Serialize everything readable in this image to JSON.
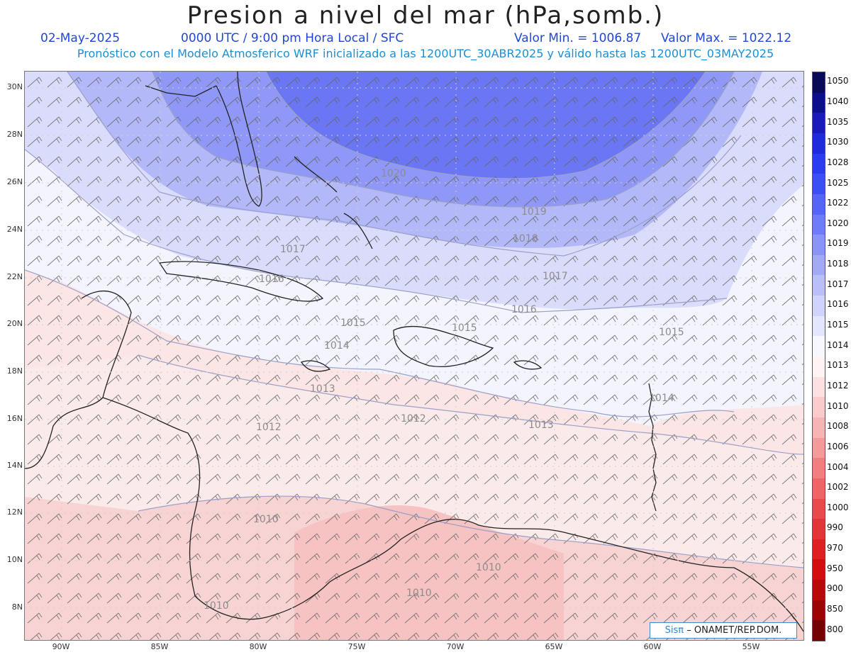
{
  "title": "Presion a nivel del mar (hPa,somb.)",
  "date": "02-May-2025",
  "time_label": "0000 UTC / 9:00 pm Hora Local / SFC",
  "min_label": "Valor Min. = 1006.87",
  "max_label": "Valor Max. = 1022.12",
  "subtitle": "Pronóstico con el Modelo Atmosferico WRF inicializado a las 1200UTC_30ABR2025 y válido hasta las  1200UTC_03MAY2025",
  "brand_prefix": "Sisπ",
  "brand_suffix": "– ONAMET/REP.DOM.",
  "lon_labels": [
    "90W",
    "85W",
    "80W",
    "75W",
    "70W",
    "65W",
    "60W",
    "55W"
  ],
  "lat_labels": [
    "30N",
    "28N",
    "26N",
    "24N",
    "22N",
    "20N",
    "18N",
    "16N",
    "14N",
    "12N",
    "10N",
    "8N"
  ],
  "colorbar": {
    "labels": [
      "1050",
      "1040",
      "1035",
      "1030",
      "1028",
      "1025",
      "1022",
      "1020",
      "1019",
      "1018",
      "1017",
      "1016",
      "1015",
      "1014",
      "1013",
      "1012",
      "1010",
      "1008",
      "1006",
      "1004",
      "1002",
      "1000",
      "990",
      "970",
      "950",
      "900",
      "850",
      "800"
    ],
    "colors": [
      "#0a0a5a",
      "#0c1088",
      "#1a1ab8",
      "#1f2bdb",
      "#2a3cf0",
      "#3b50f4",
      "#5566f5",
      "#6e7cf6",
      "#8894f7",
      "#a2aaf8",
      "#babff9",
      "#d0d3fb",
      "#e4e6fd",
      "#f7f7ff",
      "#fff3f3",
      "#fde0e0",
      "#fbcbcb",
      "#f8b4b4",
      "#f49a9a",
      "#f08080",
      "#ec6666",
      "#e64c4c",
      "#e23535",
      "#de2020",
      "#d20e0e",
      "#b80909",
      "#990505",
      "#730303"
    ]
  },
  "isobars": [
    {
      "label": "1020"
    },
    {
      "label": "1019"
    },
    {
      "label": "1018"
    },
    {
      "label": "1017"
    },
    {
      "label": "1016"
    },
    {
      "label": "1015"
    },
    {
      "label": "1014"
    },
    {
      "label": "1013"
    },
    {
      "label": "1012"
    },
    {
      "label": "1010"
    }
  ]
}
